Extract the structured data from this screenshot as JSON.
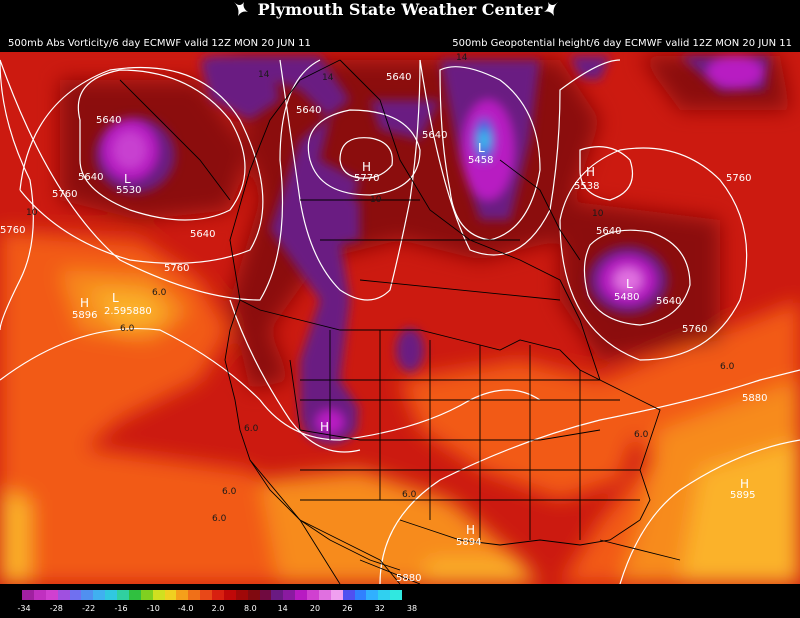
{
  "header": {
    "title": "Plymouth State Weather Center",
    "left_subtitle": "500mb Abs Vorticity/6 day ECMWF valid 12Z MON 20 JUN 11",
    "right_subtitle": "500mb Geopotential height/6 day ECMWF valid 12Z MON 20 JUN 11"
  },
  "colors": {
    "background": "#000000",
    "field_base": "#cc1a10",
    "field_dark_red": "#8b0a0a",
    "field_orange": "#f25a12",
    "field_light_orange": "#f78b1e",
    "field_yellow": "#fbb22b",
    "field_purple": "#6a1a82",
    "field_magenta": "#b81ac2",
    "contour": "#ffffff",
    "borders": "#000000"
  },
  "map_labels": {
    "contour_values": [
      "5640",
      "5640",
      "5640",
      "5640",
      "5640",
      "5640",
      "5640",
      "5640",
      "5760",
      "5760",
      "5760",
      "5760",
      "5760",
      "5760",
      "5880",
      "5880",
      "5880",
      "5880"
    ],
    "centers": [
      {
        "symbol": "L",
        "value": "5530"
      },
      {
        "symbol": "H",
        "value": "5770"
      },
      {
        "symbol": "L",
        "value": "5458"
      },
      {
        "symbol": "L",
        "value": "5480"
      },
      {
        "symbol": "H",
        "value": "5896"
      },
      {
        "symbol": "L",
        "value": "2.595880"
      },
      {
        "symbol": "H",
        "value": "5895"
      },
      {
        "symbol": "H",
        "value": "5894"
      },
      {
        "symbol": "H",
        "value": ""
      },
      {
        "symbol": "H",
        "value": "5538"
      }
    ],
    "vorticity_labels": [
      "14",
      "14",
      "14",
      "10",
      "10",
      "10",
      "6.0",
      "6.0",
      "6.0",
      "6.0",
      "6.0",
      "6.0",
      "6.0",
      "6.0"
    ]
  },
  "legend": {
    "ticks": [
      "-34",
      "-28",
      "-22",
      "-16",
      "-10",
      "-4.0",
      "2.0",
      "8.0",
      "14",
      "20",
      "26",
      "32",
      "38"
    ],
    "colors": [
      "#a020a0",
      "#c030c0",
      "#d040d0",
      "#a050e0",
      "#7070f0",
      "#5090f0",
      "#40b0f0",
      "#30c8e0",
      "#30d0a0",
      "#30c040",
      "#80d020",
      "#d0e020",
      "#f0d020",
      "#f5a01a",
      "#f07018",
      "#e84818",
      "#d82010",
      "#c00808",
      "#a00808",
      "#800a10",
      "#700a40",
      "#6a1a82",
      "#8a1aa0",
      "#b81ac2",
      "#d040d0",
      "#e070e0",
      "#f0a0f0",
      "#5050f0",
      "#3080ff",
      "#30b0ff",
      "#30d0f0",
      "#30e8e0"
    ]
  }
}
